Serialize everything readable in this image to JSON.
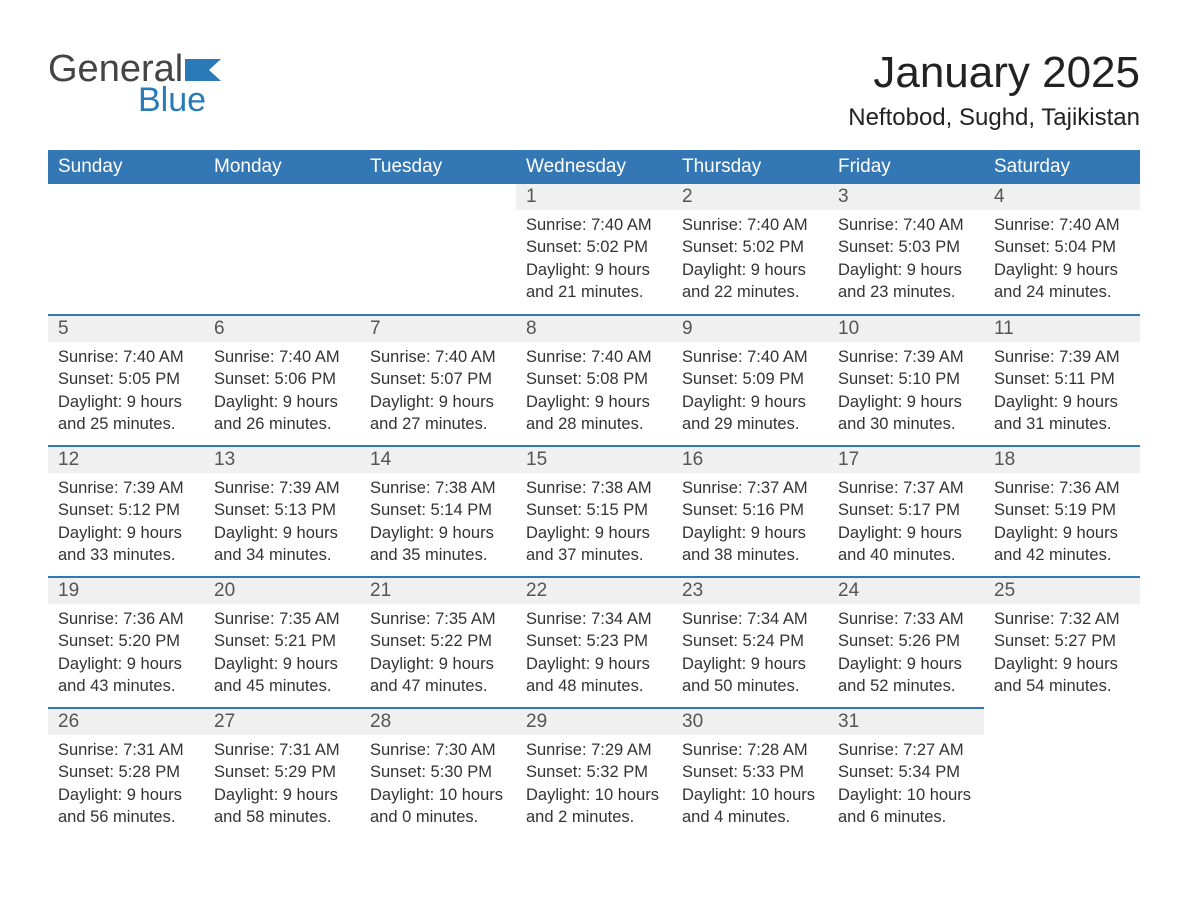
{
  "logo": {
    "word1": "General",
    "word2": "Blue",
    "accent_color": "#2a7ab8"
  },
  "title": "January 2025",
  "location": "Neftobod, Sughd, Tajikistan",
  "colors": {
    "header_bg": "#3477b5",
    "header_text": "#ffffff",
    "daynum_bg": "#f0f0f0",
    "daynum_border": "#3477b5",
    "body_text": "#333333"
  },
  "day_headers": [
    "Sunday",
    "Monday",
    "Tuesday",
    "Wednesday",
    "Thursday",
    "Friday",
    "Saturday"
  ],
  "weeks": [
    [
      null,
      null,
      null,
      {
        "n": "1",
        "sunrise": "Sunrise: 7:40 AM",
        "sunset": "Sunset: 5:02 PM",
        "dl1": "Daylight: 9 hours",
        "dl2": "and 21 minutes."
      },
      {
        "n": "2",
        "sunrise": "Sunrise: 7:40 AM",
        "sunset": "Sunset: 5:02 PM",
        "dl1": "Daylight: 9 hours",
        "dl2": "and 22 minutes."
      },
      {
        "n": "3",
        "sunrise": "Sunrise: 7:40 AM",
        "sunset": "Sunset: 5:03 PM",
        "dl1": "Daylight: 9 hours",
        "dl2": "and 23 minutes."
      },
      {
        "n": "4",
        "sunrise": "Sunrise: 7:40 AM",
        "sunset": "Sunset: 5:04 PM",
        "dl1": "Daylight: 9 hours",
        "dl2": "and 24 minutes."
      }
    ],
    [
      {
        "n": "5",
        "sunrise": "Sunrise: 7:40 AM",
        "sunset": "Sunset: 5:05 PM",
        "dl1": "Daylight: 9 hours",
        "dl2": "and 25 minutes."
      },
      {
        "n": "6",
        "sunrise": "Sunrise: 7:40 AM",
        "sunset": "Sunset: 5:06 PM",
        "dl1": "Daylight: 9 hours",
        "dl2": "and 26 minutes."
      },
      {
        "n": "7",
        "sunrise": "Sunrise: 7:40 AM",
        "sunset": "Sunset: 5:07 PM",
        "dl1": "Daylight: 9 hours",
        "dl2": "and 27 minutes."
      },
      {
        "n": "8",
        "sunrise": "Sunrise: 7:40 AM",
        "sunset": "Sunset: 5:08 PM",
        "dl1": "Daylight: 9 hours",
        "dl2": "and 28 minutes."
      },
      {
        "n": "9",
        "sunrise": "Sunrise: 7:40 AM",
        "sunset": "Sunset: 5:09 PM",
        "dl1": "Daylight: 9 hours",
        "dl2": "and 29 minutes."
      },
      {
        "n": "10",
        "sunrise": "Sunrise: 7:39 AM",
        "sunset": "Sunset: 5:10 PM",
        "dl1": "Daylight: 9 hours",
        "dl2": "and 30 minutes."
      },
      {
        "n": "11",
        "sunrise": "Sunrise: 7:39 AM",
        "sunset": "Sunset: 5:11 PM",
        "dl1": "Daylight: 9 hours",
        "dl2": "and 31 minutes."
      }
    ],
    [
      {
        "n": "12",
        "sunrise": "Sunrise: 7:39 AM",
        "sunset": "Sunset: 5:12 PM",
        "dl1": "Daylight: 9 hours",
        "dl2": "and 33 minutes."
      },
      {
        "n": "13",
        "sunrise": "Sunrise: 7:39 AM",
        "sunset": "Sunset: 5:13 PM",
        "dl1": "Daylight: 9 hours",
        "dl2": "and 34 minutes."
      },
      {
        "n": "14",
        "sunrise": "Sunrise: 7:38 AM",
        "sunset": "Sunset: 5:14 PM",
        "dl1": "Daylight: 9 hours",
        "dl2": "and 35 minutes."
      },
      {
        "n": "15",
        "sunrise": "Sunrise: 7:38 AM",
        "sunset": "Sunset: 5:15 PM",
        "dl1": "Daylight: 9 hours",
        "dl2": "and 37 minutes."
      },
      {
        "n": "16",
        "sunrise": "Sunrise: 7:37 AM",
        "sunset": "Sunset: 5:16 PM",
        "dl1": "Daylight: 9 hours",
        "dl2": "and 38 minutes."
      },
      {
        "n": "17",
        "sunrise": "Sunrise: 7:37 AM",
        "sunset": "Sunset: 5:17 PM",
        "dl1": "Daylight: 9 hours",
        "dl2": "and 40 minutes."
      },
      {
        "n": "18",
        "sunrise": "Sunrise: 7:36 AM",
        "sunset": "Sunset: 5:19 PM",
        "dl1": "Daylight: 9 hours",
        "dl2": "and 42 minutes."
      }
    ],
    [
      {
        "n": "19",
        "sunrise": "Sunrise: 7:36 AM",
        "sunset": "Sunset: 5:20 PM",
        "dl1": "Daylight: 9 hours",
        "dl2": "and 43 minutes."
      },
      {
        "n": "20",
        "sunrise": "Sunrise: 7:35 AM",
        "sunset": "Sunset: 5:21 PM",
        "dl1": "Daylight: 9 hours",
        "dl2": "and 45 minutes."
      },
      {
        "n": "21",
        "sunrise": "Sunrise: 7:35 AM",
        "sunset": "Sunset: 5:22 PM",
        "dl1": "Daylight: 9 hours",
        "dl2": "and 47 minutes."
      },
      {
        "n": "22",
        "sunrise": "Sunrise: 7:34 AM",
        "sunset": "Sunset: 5:23 PM",
        "dl1": "Daylight: 9 hours",
        "dl2": "and 48 minutes."
      },
      {
        "n": "23",
        "sunrise": "Sunrise: 7:34 AM",
        "sunset": "Sunset: 5:24 PM",
        "dl1": "Daylight: 9 hours",
        "dl2": "and 50 minutes."
      },
      {
        "n": "24",
        "sunrise": "Sunrise: 7:33 AM",
        "sunset": "Sunset: 5:26 PM",
        "dl1": "Daylight: 9 hours",
        "dl2": "and 52 minutes."
      },
      {
        "n": "25",
        "sunrise": "Sunrise: 7:32 AM",
        "sunset": "Sunset: 5:27 PM",
        "dl1": "Daylight: 9 hours",
        "dl2": "and 54 minutes."
      }
    ],
    [
      {
        "n": "26",
        "sunrise": "Sunrise: 7:31 AM",
        "sunset": "Sunset: 5:28 PM",
        "dl1": "Daylight: 9 hours",
        "dl2": "and 56 minutes."
      },
      {
        "n": "27",
        "sunrise": "Sunrise: 7:31 AM",
        "sunset": "Sunset: 5:29 PM",
        "dl1": "Daylight: 9 hours",
        "dl2": "and 58 minutes."
      },
      {
        "n": "28",
        "sunrise": "Sunrise: 7:30 AM",
        "sunset": "Sunset: 5:30 PM",
        "dl1": "Daylight: 10 hours",
        "dl2": "and 0 minutes."
      },
      {
        "n": "29",
        "sunrise": "Sunrise: 7:29 AM",
        "sunset": "Sunset: 5:32 PM",
        "dl1": "Daylight: 10 hours",
        "dl2": "and 2 minutes."
      },
      {
        "n": "30",
        "sunrise": "Sunrise: 7:28 AM",
        "sunset": "Sunset: 5:33 PM",
        "dl1": "Daylight: 10 hours",
        "dl2": "and 4 minutes."
      },
      {
        "n": "31",
        "sunrise": "Sunrise: 7:27 AM",
        "sunset": "Sunset: 5:34 PM",
        "dl1": "Daylight: 10 hours",
        "dl2": "and 6 minutes."
      },
      null
    ]
  ]
}
